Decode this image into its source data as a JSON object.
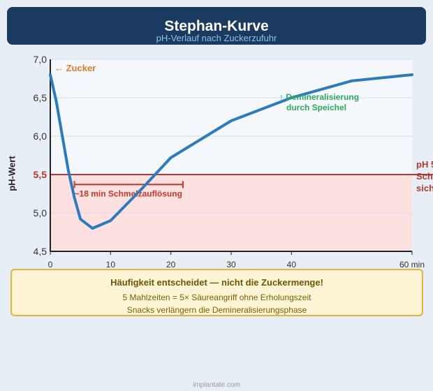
{
  "header": {
    "title": "Stephan-Kurve",
    "subtitle": "pH-Verlauf nach Zuckerzufuhr"
  },
  "chart_data": {
    "type": "line",
    "title": "Stephan-Kurve",
    "subtitle": "pH-Verlauf nach Zuckerzufuhr",
    "ylabel": "pH-Wert",
    "xlabel": "",
    "xlim": [
      0,
      60
    ],
    "ylim": [
      4.5,
      7.0
    ],
    "x_ticks": [
      0,
      10,
      20,
      30,
      40,
      60
    ],
    "x_tick_labels": [
      "0",
      "10",
      "20",
      "30",
      "40",
      "60 min"
    ],
    "y_ticks": [
      4.5,
      5.0,
      5.5,
      6.0,
      6.5,
      7.0
    ],
    "y_tick_labels": [
      "4,5",
      "5,0",
      "5,5",
      "6,0",
      "6,5",
      "7,0"
    ],
    "grid": true,
    "series": [
      {
        "color": "#2b7bbd",
        "x": [
          0,
          1,
          2,
          3,
          4,
          5,
          7,
          10,
          15,
          20,
          30,
          40,
          50,
          60
        ],
        "y": [
          6.8,
          6.45,
          6.0,
          5.55,
          5.2,
          4.92,
          4.8,
          4.9,
          5.3,
          5.72,
          6.2,
          6.5,
          6.72,
          6.8
        ]
      }
    ],
    "threshold": {
      "value": 5.5,
      "color": "#b03a2e",
      "label_lines": [
        "pH 5",
        "Sch",
        "sich"
      ]
    },
    "critical_zone_color": "#fde0e0",
    "annotations": {
      "sugar": "← Zucker",
      "duration": "~18 min Schmelzauflösung",
      "duration_range": [
        4,
        22
      ],
      "duration_y": 5.37,
      "remineral_line1": "↑ Demineralisierung",
      "remineral_line2": "durch Speichel"
    }
  },
  "info_box": {
    "title": "Häufigkeit entscheidet — nicht die Zuckermenge!",
    "line1": "5 Mahlzeiten = 5× Säureangriff ohne Erholungszeit",
    "line2": "Snacks verlängern die Demineralisierungsphase"
  },
  "footer": "implantate.com"
}
